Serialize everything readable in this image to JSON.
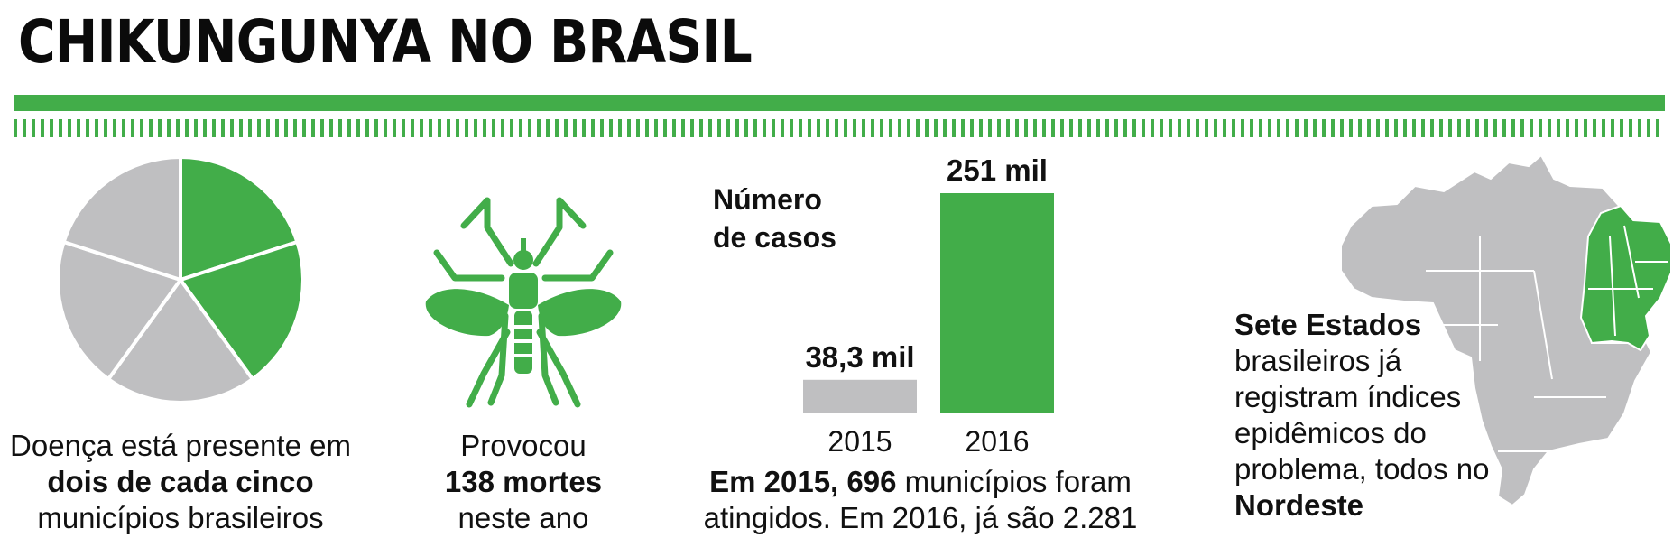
{
  "title": "CHIKUNGUNYA NO BRASIL",
  "colors": {
    "green": "#42ad49",
    "gray": "#bfbfc1"
  },
  "pie": {
    "caption_pre": "Doença está presente em ",
    "caption_bold": "dois de cada cinco",
    "caption_post": " municípios brasileiros"
  },
  "mosquito": {
    "icon": "mosquito-icon",
    "caption_pre": "Provocou",
    "caption_bold": "138 mortes",
    "caption_post": "neste ano"
  },
  "chart_data": {
    "type": "bar",
    "title": "Número\nde casos",
    "categories": [
      "2015",
      "2016"
    ],
    "values": [
      38.3,
      251
    ],
    "value_labels": [
      "38,3 mil",
      "251 mil"
    ],
    "bar_colors": [
      "#bfbfc1",
      "#42ad49"
    ],
    "ylim": [
      0,
      251
    ],
    "grid": false
  },
  "chart_caption": {
    "bold": "Em 2015, 696",
    "rest": " municípios foram atingidos. Em 2016, já são 2.281"
  },
  "map": {
    "icon": "brazil-map-icon",
    "text_bold": "Sete Estados",
    "text_mid": " brasileiros já registram índices epidêmicos do problema, todos no ",
    "text_bold2": "Nordeste"
  }
}
